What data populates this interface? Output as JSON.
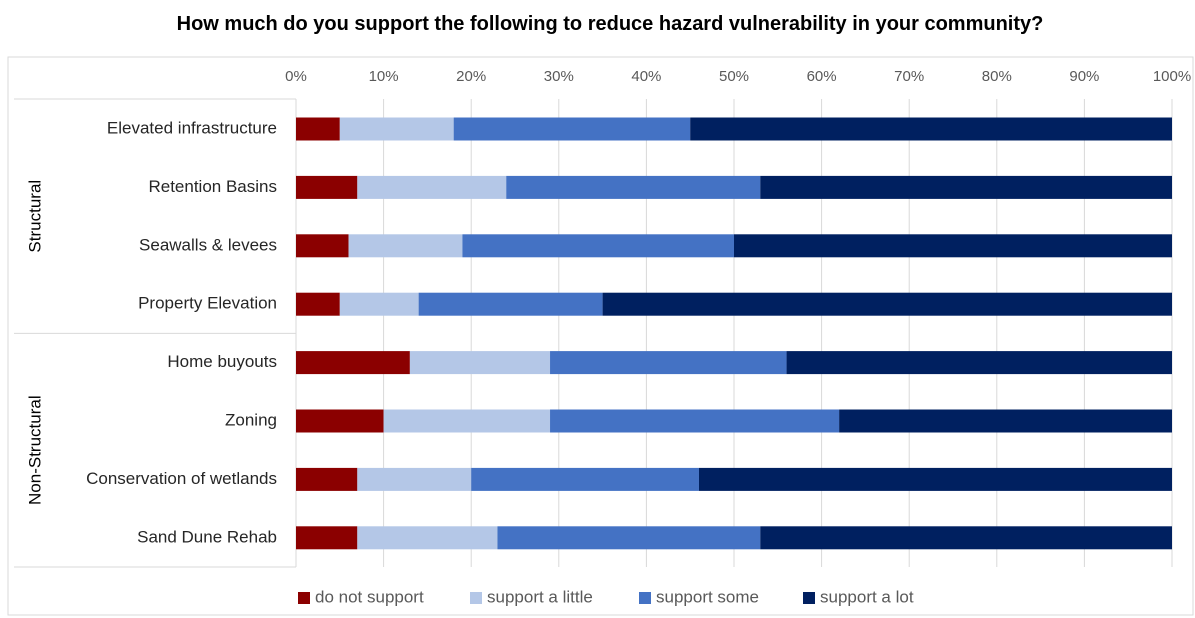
{
  "chart_data": {
    "type": "bar",
    "orientation": "horizontal",
    "stacked": "percent",
    "title": "How much do you support the following to reduce hazard vulnerability in your community?",
    "xlabel": "",
    "ylabel": "",
    "xlim": [
      0,
      100
    ],
    "x_ticks": [
      "0%",
      "10%",
      "20%",
      "30%",
      "40%",
      "50%",
      "60%",
      "70%",
      "80%",
      "90%",
      "100%"
    ],
    "grid": true,
    "legend_position": "bottom",
    "groups": [
      {
        "label": "Structural",
        "categories": [
          "Elevated infrastructure",
          "Retention Basins",
          "Seawalls & levees",
          "Property Elevation"
        ]
      },
      {
        "label": "Non-Structural",
        "categories": [
          "Home buyouts",
          "Zoning",
          "Conservation of wetlands",
          "Sand Dune Rehab"
        ]
      }
    ],
    "categories": [
      "Elevated infrastructure",
      "Retention Basins",
      "Seawalls & levees",
      "Property Elevation",
      "Home buyouts",
      "Zoning",
      "Conservation of wetlands",
      "Sand Dune Rehab"
    ],
    "series": [
      {
        "name": "do not support",
        "color": "#8b0000",
        "values": [
          5,
          7,
          6,
          5,
          13,
          10,
          7,
          7
        ]
      },
      {
        "name": "support a little",
        "color": "#b4c7e7",
        "values": [
          13,
          17,
          13,
          9,
          16,
          19,
          13,
          16
        ]
      },
      {
        "name": "support some",
        "color": "#4472c4",
        "values": [
          27,
          29,
          31,
          21,
          27,
          33,
          26,
          30
        ]
      },
      {
        "name": "support a lot",
        "color": "#002060",
        "values": [
          55,
          47,
          50,
          65,
          44,
          38,
          54,
          47
        ]
      }
    ]
  }
}
